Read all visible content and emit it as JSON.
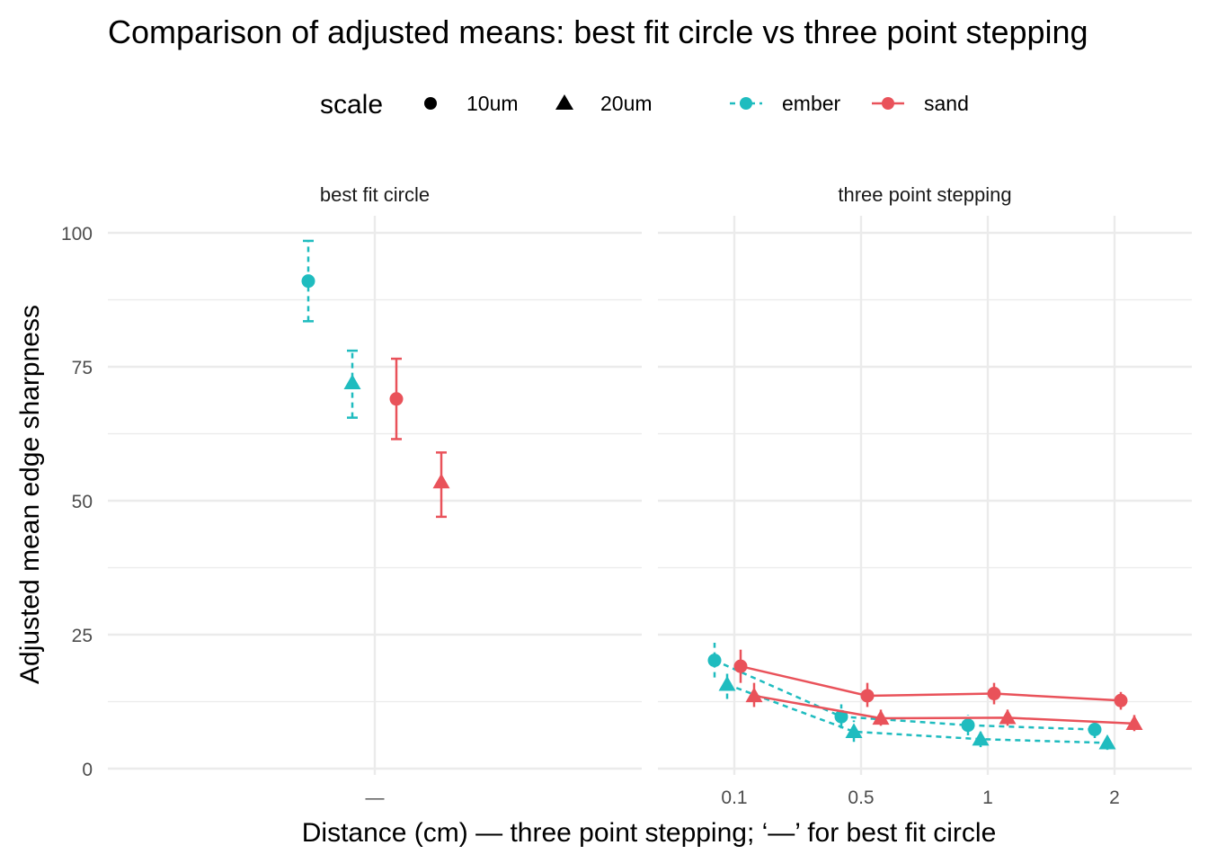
{
  "chart_data": {
    "type": "scatter",
    "title": "Comparison of adjusted means: best fit circle vs three point stepping",
    "xlabel": "Distance (cm) — three point stepping; ‘—’ for best fit circle",
    "ylabel": "Adjusted mean edge sharpness",
    "ylim": [
      0,
      100
    ],
    "y_ticks": [
      "0",
      "25",
      "50",
      "75",
      "100"
    ],
    "grid": true,
    "legend": {
      "position": "top",
      "shape_title": "scale",
      "shape_entries": [
        "10um",
        "20um"
      ],
      "color_entries": [
        "ember",
        "sand"
      ]
    },
    "colors": {
      "ember": "#1fbcbf",
      "sand": "#e9525a"
    },
    "panels": [
      {
        "label": "best fit circle",
        "x_ticks": [
          "—"
        ],
        "series": [
          {
            "name": "ember",
            "scale": "10um",
            "points": [
              {
                "x": "—",
                "y": 91,
                "ymin": 83.5,
                "ymax": 98.5
              }
            ]
          },
          {
            "name": "ember",
            "scale": "20um",
            "points": [
              {
                "x": "—",
                "y": 72,
                "ymin": 65.5,
                "ymax": 78
              }
            ]
          },
          {
            "name": "sand",
            "scale": "10um",
            "points": [
              {
                "x": "—",
                "y": 69,
                "ymin": 61.5,
                "ymax": 76.5
              }
            ]
          },
          {
            "name": "sand",
            "scale": "20um",
            "points": [
              {
                "x": "—",
                "y": 53.5,
                "ymin": 47,
                "ymax": 59
              }
            ]
          }
        ]
      },
      {
        "label": "three point stepping",
        "x_ticks": [
          "0.1",
          "0.5",
          "1",
          "2"
        ],
        "series": [
          {
            "name": "ember",
            "scale": "10um",
            "points": [
              {
                "x": "0.1",
                "y": 20.2,
                "ymin": 17,
                "ymax": 23.5
              },
              {
                "x": "0.5",
                "y": 9.7,
                "ymin": 7.5,
                "ymax": 12
              },
              {
                "x": "1",
                "y": 8.1,
                "ymin": 6.2,
                "ymax": 10
              },
              {
                "x": "2",
                "y": 7.3,
                "ymin": 5.7,
                "ymax": 9
              }
            ]
          },
          {
            "name": "ember",
            "scale": "20um",
            "points": [
              {
                "x": "0.1",
                "y": 15.7,
                "ymin": 13,
                "ymax": 18
              },
              {
                "x": "0.5",
                "y": 6.9,
                "ymin": 5,
                "ymax": 9
              },
              {
                "x": "1",
                "y": 5.5,
                "ymin": 4,
                "ymax": 7
              },
              {
                "x": "2",
                "y": 4.8,
                "ymin": 3.5,
                "ymax": 6
              }
            ]
          },
          {
            "name": "sand",
            "scale": "10um",
            "points": [
              {
                "x": "0.1",
                "y": 19.1,
                "ymin": 16,
                "ymax": 22.2
              },
              {
                "x": "0.5",
                "y": 13.6,
                "ymin": 11.5,
                "ymax": 16
              },
              {
                "x": "1",
                "y": 14,
                "ymin": 12,
                "ymax": 16
              },
              {
                "x": "2",
                "y": 12.7,
                "ymin": 11,
                "ymax": 14.3
              }
            ]
          },
          {
            "name": "sand",
            "scale": "20um",
            "points": [
              {
                "x": "0.1",
                "y": 13.6,
                "ymin": 11.5,
                "ymax": 16
              },
              {
                "x": "0.5",
                "y": 9.4,
                "ymin": 8,
                "ymax": 11
              },
              {
                "x": "1",
                "y": 9.5,
                "ymin": 8,
                "ymax": 11
              },
              {
                "x": "2",
                "y": 8.4,
                "ymin": 7,
                "ymax": 10
              }
            ]
          }
        ]
      }
    ]
  }
}
